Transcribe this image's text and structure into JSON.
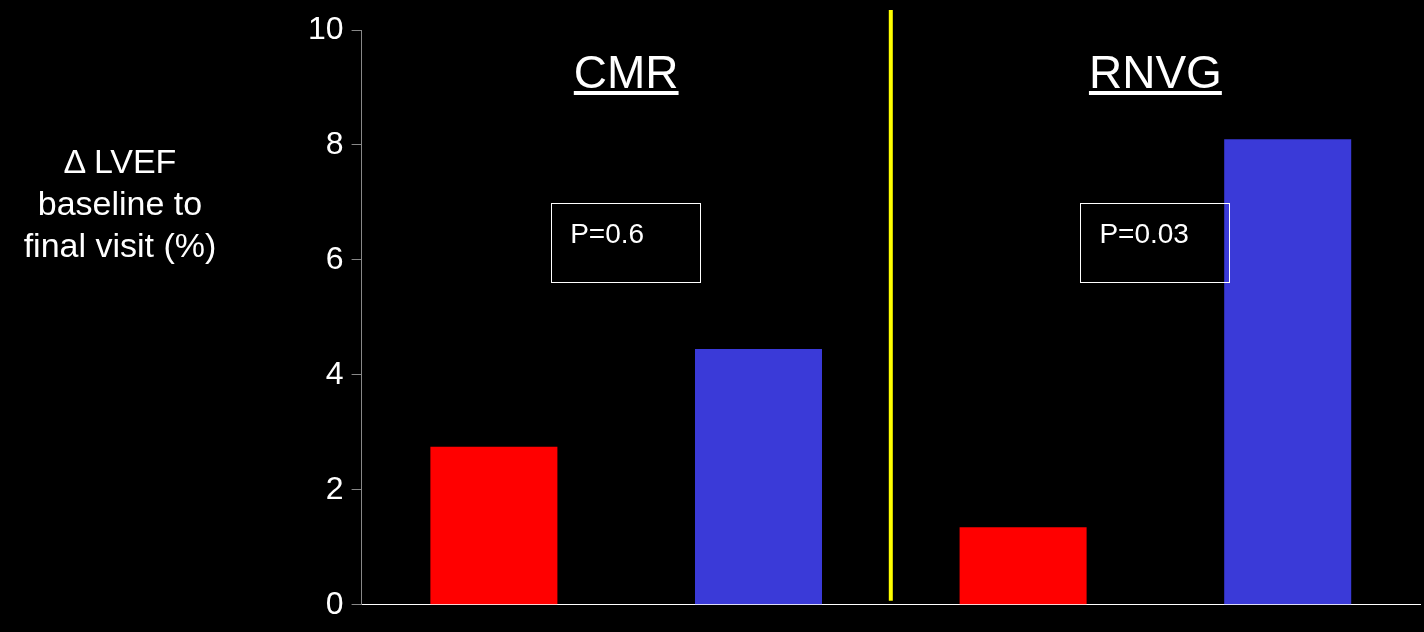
{
  "chart_data": {
    "type": "bar",
    "ylabel": "Δ LVEF baseline to final visit (%)",
    "categories": [
      null,
      null,
      null,
      null
    ],
    "values": [
      2.75,
      4.45,
      1.35,
      8.1
    ],
    "colors": [
      "#ff0000",
      "#3a3ad8",
      "#ff0000",
      "#3a3ad8"
    ],
    "ylim": [
      0,
      10
    ],
    "yticks": [
      0,
      2,
      4,
      6,
      8,
      10
    ],
    "tick_labels": "y",
    "annotations": [
      "CMR",
      "RNVG",
      "P=0.6",
      "P=0.03"
    ]
  }
}
